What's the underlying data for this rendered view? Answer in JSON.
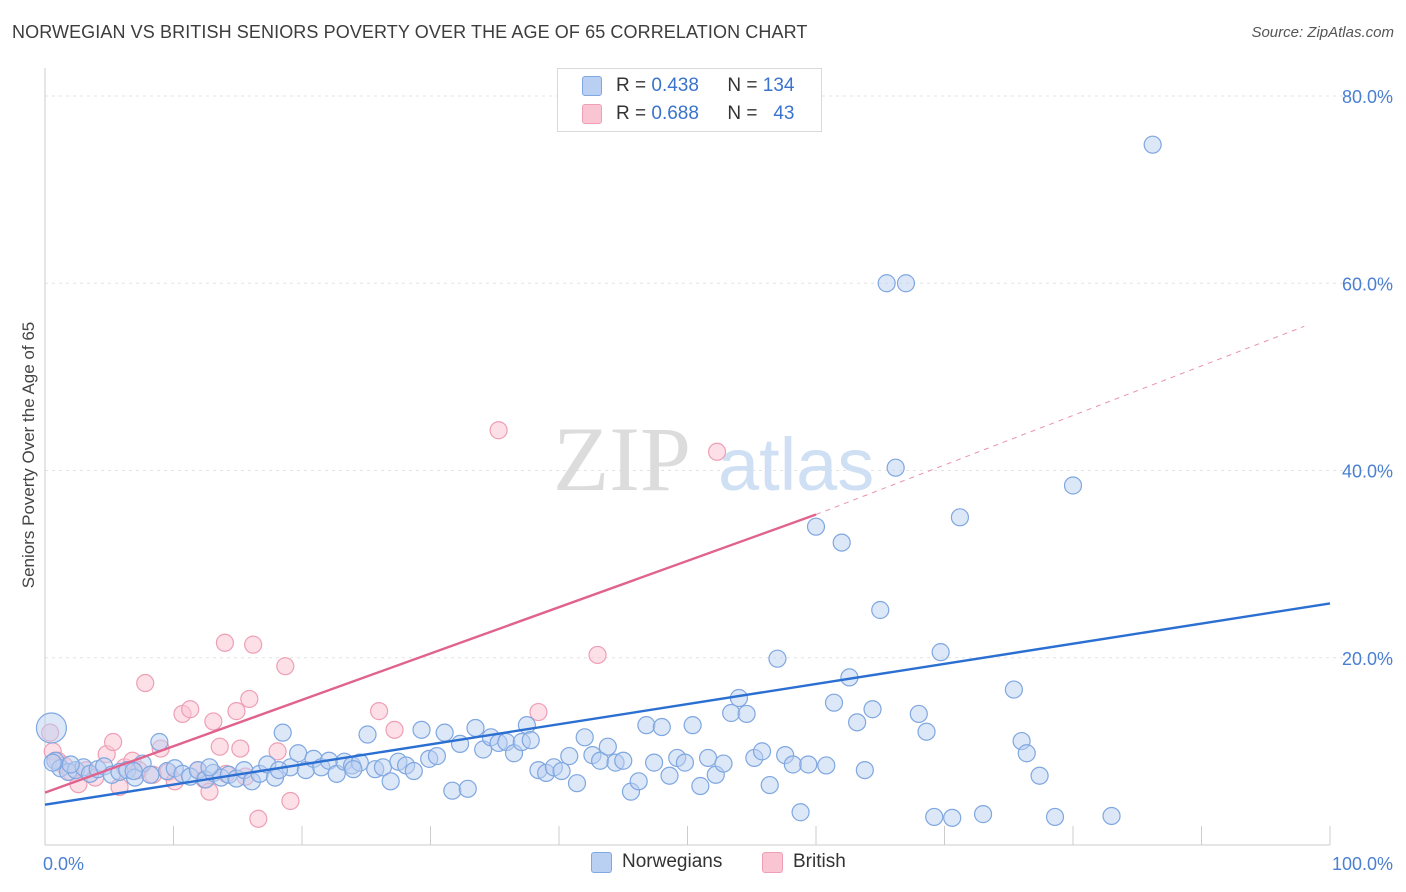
{
  "title": "NORWEGIAN VS BRITISH SENIORS POVERTY OVER THE AGE OF 65 CORRELATION CHART",
  "source": "Source: ZipAtlas.com",
  "watermark": {
    "zip": "ZIP",
    "atlas": "atlas"
  },
  "legend": {
    "r_label": "R =",
    "n_label": "N =",
    "norwegians": {
      "r": "0.438",
      "n": "134"
    },
    "british": {
      "r": "0.688",
      "n": "43"
    }
  },
  "colors": {
    "norwegian_fill": "#b9d0f2",
    "norwegian_stroke": "#7fa7e0",
    "norwegian_line": "#2a6fd1",
    "british_fill": "#f9c5d3",
    "british_stroke": "#ee9fb5",
    "british_line": "#e0638e",
    "tick_label": "#4a7fd1"
  },
  "chart_data": {
    "type": "scatter",
    "title": "NORWEGIAN VS BRITISH SENIORS POVERTY OVER THE AGE OF 65 CORRELATION CHART",
    "xlabel": "",
    "ylabel": "Seniors Poverty Over the Age of 65",
    "xlim": [
      0,
      100
    ],
    "ylim": [
      0,
      80
    ],
    "x_tick_labels": [
      "0.0%",
      "100.0%"
    ],
    "y_ticks": [
      20,
      40,
      60,
      80
    ],
    "y_tick_labels": [
      "20.0%",
      "40.0%",
      "60.0%",
      "80.0%"
    ],
    "grid": true,
    "legend_position": "top-center",
    "series": [
      {
        "name": "Norwegians",
        "r": 0.438,
        "n": 134,
        "trend": {
          "x": [
            0,
            100
          ],
          "y": [
            4.3,
            25.8
          ],
          "dashed_extension": false
        },
        "points": [
          [
            0.5,
            12.5
          ],
          [
            0.8,
            9.0
          ],
          [
            1.2,
            8.2
          ],
          [
            1.8,
            7.8
          ],
          [
            2.4,
            8.0
          ],
          [
            3.0,
            8.3
          ],
          [
            3.5,
            7.6
          ],
          [
            4.1,
            8.1
          ],
          [
            4.6,
            8.4
          ],
          [
            5.2,
            7.5
          ],
          [
            5.8,
            7.8
          ],
          [
            6.4,
            8.0
          ],
          [
            7.0,
            7.2
          ],
          [
            7.6,
            8.7
          ],
          [
            8.2,
            7.5
          ],
          [
            8.9,
            11.0
          ],
          [
            9.5,
            7.9
          ],
          [
            10.1,
            8.2
          ],
          [
            10.7,
            7.6
          ],
          [
            11.3,
            7.3
          ],
          [
            11.9,
            8.0
          ],
          [
            12.5,
            7.0
          ],
          [
            13.1,
            7.7
          ],
          [
            13.7,
            7.2
          ],
          [
            14.3,
            7.5
          ],
          [
            14.9,
            7.1
          ],
          [
            15.5,
            8.0
          ],
          [
            16.1,
            6.8
          ],
          [
            16.7,
            7.6
          ],
          [
            17.3,
            8.6
          ],
          [
            17.9,
            7.2
          ],
          [
            18.5,
            12.0
          ],
          [
            19.1,
            8.3
          ],
          [
            19.7,
            9.8
          ],
          [
            20.3,
            8.0
          ],
          [
            20.9,
            9.2
          ],
          [
            21.5,
            8.3
          ],
          [
            22.1,
            9.0
          ],
          [
            22.7,
            7.6
          ],
          [
            23.3,
            8.9
          ],
          [
            23.9,
            8.5
          ],
          [
            24.5,
            8.8
          ],
          [
            25.1,
            11.8
          ],
          [
            25.7,
            8.1
          ],
          [
            26.3,
            8.3
          ],
          [
            26.9,
            6.8
          ],
          [
            27.5,
            8.9
          ],
          [
            28.1,
            8.5
          ],
          [
            28.7,
            7.9
          ],
          [
            29.3,
            12.3
          ],
          [
            29.9,
            9.2
          ],
          [
            30.5,
            9.5
          ],
          [
            31.1,
            12.0
          ],
          [
            31.7,
            5.8
          ],
          [
            32.3,
            10.8
          ],
          [
            32.9,
            6.0
          ],
          [
            33.5,
            12.5
          ],
          [
            34.1,
            10.2
          ],
          [
            34.7,
            11.5
          ],
          [
            35.3,
            10.9
          ],
          [
            35.9,
            11.0
          ],
          [
            36.5,
            9.8
          ],
          [
            37.1,
            11.0
          ],
          [
            37.5,
            12.8
          ],
          [
            37.8,
            11.2
          ],
          [
            38.4,
            8.0
          ],
          [
            39.0,
            7.7
          ],
          [
            39.6,
            8.3
          ],
          [
            40.2,
            7.9
          ],
          [
            40.8,
            9.5
          ],
          [
            41.4,
            6.6
          ],
          [
            42.0,
            11.5
          ],
          [
            42.6,
            9.6
          ],
          [
            43.2,
            9.0
          ],
          [
            43.8,
            10.5
          ],
          [
            44.4,
            8.8
          ],
          [
            45.0,
            9.0
          ],
          [
            45.6,
            5.7
          ],
          [
            46.2,
            6.8
          ],
          [
            46.8,
            12.8
          ],
          [
            47.4,
            8.8
          ],
          [
            48.0,
            12.6
          ],
          [
            48.6,
            7.4
          ],
          [
            49.2,
            9.3
          ],
          [
            49.8,
            8.8
          ],
          [
            50.4,
            12.8
          ],
          [
            51.0,
            6.3
          ],
          [
            51.6,
            9.3
          ],
          [
            52.2,
            7.5
          ],
          [
            52.8,
            8.7
          ],
          [
            53.4,
            14.1
          ],
          [
            54.0,
            15.7
          ],
          [
            54.6,
            14.0
          ],
          [
            55.2,
            9.3
          ],
          [
            55.8,
            10.0
          ],
          [
            56.4,
            6.4
          ],
          [
            57.0,
            19.9
          ],
          [
            57.6,
            9.6
          ],
          [
            58.2,
            8.6
          ],
          [
            58.8,
            3.5
          ],
          [
            59.4,
            8.6
          ],
          [
            60.0,
            34.0
          ],
          [
            60.8,
            8.5
          ],
          [
            61.4,
            15.2
          ],
          [
            62.0,
            32.3
          ],
          [
            62.6,
            17.9
          ],
          [
            63.2,
            13.1
          ],
          [
            63.8,
            8.0
          ],
          [
            64.4,
            14.5
          ],
          [
            65.0,
            25.1
          ],
          [
            65.5,
            60.0
          ],
          [
            66.2,
            40.3
          ],
          [
            67.0,
            60.0
          ],
          [
            68.0,
            14.0
          ],
          [
            68.6,
            12.1
          ],
          [
            69.2,
            3.0
          ],
          [
            69.7,
            20.6
          ],
          [
            70.6,
            2.9
          ],
          [
            71.2,
            35.0
          ],
          [
            73.0,
            3.3
          ],
          [
            75.4,
            16.6
          ],
          [
            76.0,
            11.1
          ],
          [
            76.4,
            9.8
          ],
          [
            77.4,
            7.4
          ],
          [
            78.6,
            3.0
          ],
          [
            80.0,
            38.4
          ],
          [
            83.0,
            3.1
          ],
          [
            86.2,
            74.8
          ],
          [
            0.6,
            8.8
          ],
          [
            2.0,
            8.6
          ],
          [
            6.9,
            7.9
          ],
          [
            12.8,
            8.3
          ],
          [
            18.2,
            8.0
          ],
          [
            24.0,
            8.1
          ]
        ]
      },
      {
        "name": "British",
        "r": 0.688,
        "n": 43,
        "trend": {
          "x": [
            0,
            60
          ],
          "y": [
            5.6,
            35.3
          ],
          "dashed_extension": {
            "x": [
              60,
              98
            ],
            "y": [
              35.3,
              55.4
            ]
          }
        },
        "points": [
          [
            0.6,
            10.0
          ],
          [
            1.0,
            9.0
          ],
          [
            1.5,
            8.5
          ],
          [
            2.0,
            7.8
          ],
          [
            2.6,
            6.5
          ],
          [
            3.2,
            8.0
          ],
          [
            3.9,
            7.2
          ],
          [
            4.8,
            9.7
          ],
          [
            5.3,
            11.0
          ],
          [
            5.8,
            6.2
          ],
          [
            6.2,
            8.3
          ],
          [
            6.8,
            9.0
          ],
          [
            7.3,
            8.0
          ],
          [
            7.8,
            17.3
          ],
          [
            8.4,
            7.5
          ],
          [
            9.0,
            10.3
          ],
          [
            9.6,
            7.8
          ],
          [
            10.1,
            6.8
          ],
          [
            10.7,
            14.0
          ],
          [
            11.3,
            14.5
          ],
          [
            11.9,
            8.0
          ],
          [
            12.4,
            7.0
          ],
          [
            12.8,
            5.7
          ],
          [
            13.1,
            13.2
          ],
          [
            13.6,
            10.5
          ],
          [
            14.1,
            7.6
          ],
          [
            14.0,
            21.6
          ],
          [
            14.9,
            14.3
          ],
          [
            15.2,
            10.3
          ],
          [
            15.6,
            7.3
          ],
          [
            15.9,
            15.6
          ],
          [
            16.2,
            21.4
          ],
          [
            16.6,
            2.8
          ],
          [
            18.1,
            10.0
          ],
          [
            18.7,
            19.1
          ],
          [
            19.1,
            4.7
          ],
          [
            26.0,
            14.3
          ],
          [
            27.2,
            12.3
          ],
          [
            35.3,
            44.3
          ],
          [
            38.4,
            14.2
          ],
          [
            43.0,
            20.3
          ],
          [
            52.3,
            42.0
          ],
          [
            0.4,
            12.0
          ]
        ]
      }
    ]
  },
  "bottom_legend": [
    "Norwegians",
    "British"
  ]
}
